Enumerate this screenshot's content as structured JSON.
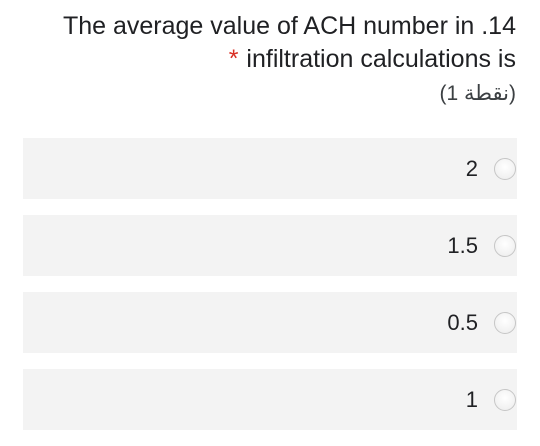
{
  "question": {
    "line1": "The average value of ACH number in .14",
    "asterisk": "*",
    "line2": "infiltration calculations is",
    "points": "(1 نقطة)"
  },
  "options": [
    {
      "label": "2"
    },
    {
      "label": "1.5"
    },
    {
      "label": "0.5"
    },
    {
      "label": "1"
    }
  ]
}
